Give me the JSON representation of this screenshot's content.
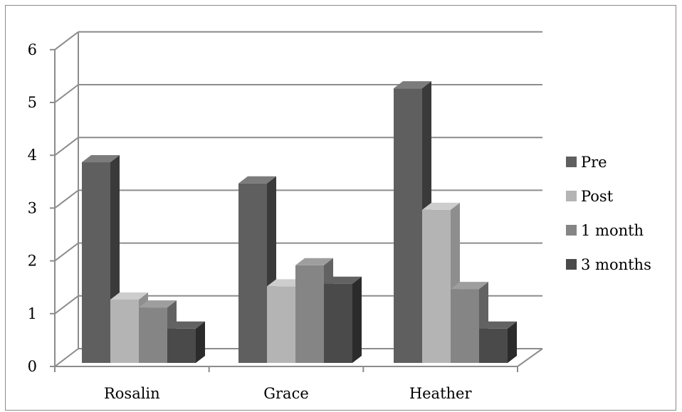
{
  "chart_data": {
    "type": "bar",
    "categories": [
      "Rosalin",
      "Grace",
      "Heather"
    ],
    "series": [
      {
        "name": "Pre",
        "values": [
          3.8,
          3.4,
          5.2
        ],
        "color": "#5f5f5f",
        "side": "#3a3a3a",
        "top": "#7c7c7c"
      },
      {
        "name": "Post",
        "values": [
          1.2,
          1.45,
          2.9
        ],
        "color": "#b4b4b4",
        "side": "#8e8e8e",
        "top": "#cdcdcd"
      },
      {
        "name": "1 month",
        "values": [
          1.05,
          1.85,
          1.4
        ],
        "color": "#858585",
        "side": "#626262",
        "top": "#9e9e9e"
      },
      {
        "name": "3 months",
        "values": [
          0.65,
          1.5,
          0.65
        ],
        "color": "#4a4a4a",
        "side": "#2b2b2b",
        "top": "#626262"
      }
    ],
    "ylim": [
      0,
      6
    ],
    "yticks": [
      0,
      1,
      2,
      3,
      4,
      5,
      6
    ],
    "grid": true,
    "legend_position": "right",
    "three_d": true
  }
}
